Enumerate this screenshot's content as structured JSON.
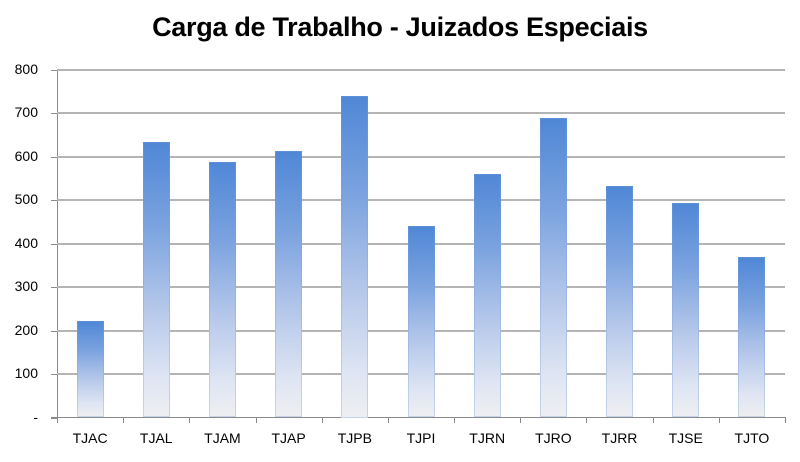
{
  "chart_data": {
    "type": "bar",
    "title": "Carga de Trabalho - Juizados  Especiais",
    "xlabel": "",
    "ylabel": "",
    "categories": [
      "TJAC",
      "TJAL",
      "TJAM",
      "TJAP",
      "TJPB",
      "TJPI",
      "TJRN",
      "TJRO",
      "TJRR",
      "TJSE",
      "TJTO"
    ],
    "values": [
      223,
      634,
      589,
      613,
      740,
      442,
      561,
      689,
      534,
      494,
      369
    ],
    "ylim": [
      0,
      800
    ],
    "yticks": [
      0,
      100,
      200,
      300,
      400,
      500,
      600,
      700,
      800
    ],
    "ytick_labels": [
      "-",
      "100",
      "200",
      "300",
      "400",
      "500",
      "600",
      "700",
      "800"
    ],
    "grid": true,
    "legend": null,
    "bar_color_top": "#4F87D6",
    "bar_color_bottom": "#EFEFF2"
  }
}
